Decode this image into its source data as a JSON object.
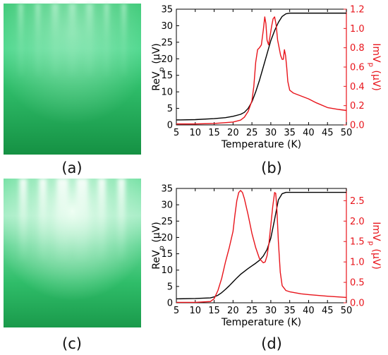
{
  "panel_labels": {
    "a": "(a)",
    "b": "(b)",
    "c": "(c)",
    "d": "(d)"
  },
  "colors": {
    "left_axis": "#000000",
    "right_axis": "#e8141b",
    "black_curve": "#000000",
    "red_curve": "#e8141b",
    "rheed_deep": "#138a3e",
    "rheed_mid": "#2db866",
    "rheed_bright": "#b9f2d1",
    "rheed_white": "#eefcf2"
  },
  "images": [
    {
      "id": "a",
      "type": "rheed-pattern",
      "glow": "weak",
      "streaks": 7
    },
    {
      "id": "c",
      "type": "rheed-pattern",
      "glow": "strong",
      "streaks": 6
    }
  ],
  "chart_data": [
    {
      "id": "b",
      "type": "line",
      "xlabel": "Temperature (K)",
      "ylabel_left": {
        "base": "ReV",
        "sub": "p",
        "unit": " (µV)"
      },
      "ylabel_right": {
        "base": "ImV",
        "sub": "p",
        "unit": " (µV)"
      },
      "xlim": [
        5,
        50
      ],
      "ylim_left": [
        0,
        35
      ],
      "ylim_right": [
        0,
        1.2
      ],
      "x_ticks": [
        "5",
        "10",
        "15",
        "20",
        "25",
        "30",
        "35",
        "40",
        "45",
        "50"
      ],
      "y_ticks_left": [
        "0",
        "5",
        "10",
        "15",
        "20",
        "25",
        "30",
        "35"
      ],
      "y_ticks_right": [
        "0.0",
        "0.2",
        "0.4",
        "0.6",
        "0.8",
        "1.0",
        "1.2"
      ],
      "series": [
        {
          "axis": "left",
          "color": "#000000",
          "x": [
            5,
            10,
            15,
            18,
            20,
            22,
            23,
            24,
            25,
            26,
            27,
            28,
            29,
            30,
            31,
            32,
            33,
            34,
            35,
            36,
            40,
            45,
            50
          ],
          "y": [
            1.5,
            1.6,
            1.9,
            2.2,
            2.6,
            3.2,
            3.8,
            5,
            7,
            10,
            13.5,
            17.5,
            21.5,
            25.5,
            28.5,
            31,
            32.8,
            33.6,
            33.8,
            33.8,
            33.8,
            33.8,
            33.8
          ]
        },
        {
          "axis": "right",
          "color": "#e8141b",
          "x": [
            5,
            10,
            15,
            20,
            22,
            23,
            24,
            25,
            25.5,
            26,
            26.5,
            27,
            27.5,
            28,
            28.4,
            28.7,
            29,
            29.4,
            29.8,
            30.2,
            30.6,
            31,
            31.4,
            31.8,
            32.2,
            32.6,
            33,
            33.3,
            33.6,
            33.9,
            34.2,
            34.5,
            35,
            36,
            38,
            40,
            42,
            45,
            48,
            50
          ],
          "y": [
            0.01,
            0.01,
            0.015,
            0.03,
            0.05,
            0.08,
            0.14,
            0.25,
            0.4,
            0.65,
            0.78,
            0.8,
            0.83,
            0.98,
            1.12,
            1.05,
            0.88,
            0.83,
            0.92,
            1.02,
            1.1,
            1.12,
            1.04,
            0.88,
            0.8,
            0.72,
            0.68,
            0.68,
            0.78,
            0.72,
            0.6,
            0.45,
            0.36,
            0.33,
            0.3,
            0.27,
            0.23,
            0.18,
            0.16,
            0.15
          ]
        }
      ]
    },
    {
      "id": "d",
      "type": "line",
      "xlabel": "Temperature (K)",
      "ylabel_left": {
        "base": "ReV",
        "sub": "p",
        "unit": " (µV)"
      },
      "ylabel_right": {
        "base": "ImV",
        "sub": "p",
        "unit": " (µV)"
      },
      "xlim": [
        5,
        50
      ],
      "ylim_left": [
        0,
        35
      ],
      "ylim_right": [
        0,
        2.8
      ],
      "x_ticks": [
        "5",
        "10",
        "15",
        "20",
        "25",
        "30",
        "35",
        "40",
        "45",
        "50"
      ],
      "y_ticks_left": [
        "0",
        "5",
        "10",
        "15",
        "20",
        "25",
        "30",
        "35"
      ],
      "y_ticks_right": [
        "0.0",
        "0.5",
        "1.0",
        "1.5",
        "2.0",
        "2.5"
      ],
      "series": [
        {
          "axis": "left",
          "color": "#000000",
          "x": [
            5,
            10,
            14,
            15,
            16,
            17,
            18,
            19,
            20,
            21,
            22,
            23,
            24,
            25,
            26,
            27,
            28,
            29,
            30,
            31,
            32,
            33,
            34,
            35,
            40,
            45,
            50
          ],
          "y": [
            1.2,
            1.3,
            1.5,
            1.8,
            2.3,
            3.1,
            4.1,
            5.2,
            6.4,
            7.6,
            8.7,
            9.6,
            10.5,
            11.3,
            12.1,
            13.0,
            14.3,
            16.3,
            19.8,
            25.5,
            31.5,
            33.4,
            33.8,
            33.8,
            33.8,
            33.8,
            33.8
          ]
        },
        {
          "axis": "right",
          "color": "#e8141b",
          "x": [
            5,
            10,
            14,
            15,
            16,
            17,
            18,
            19,
            20,
            20.5,
            21,
            21.5,
            22,
            22.5,
            23,
            24,
            25,
            26,
            27,
            28,
            28.5,
            29,
            29.5,
            30,
            30.5,
            31,
            31.3,
            31.6,
            32,
            32.5,
            33,
            34,
            35,
            38,
            40,
            45,
            50
          ],
          "y": [
            0.01,
            0.01,
            0.03,
            0.1,
            0.3,
            0.6,
            1.0,
            1.35,
            1.75,
            2.15,
            2.5,
            2.7,
            2.75,
            2.7,
            2.55,
            2.15,
            1.7,
            1.35,
            1.08,
            0.98,
            1.0,
            1.15,
            1.45,
            1.9,
            2.35,
            2.7,
            2.68,
            2.3,
            1.5,
            0.75,
            0.42,
            0.3,
            0.27,
            0.22,
            0.2,
            0.16,
            0.13
          ]
        }
      ]
    }
  ]
}
